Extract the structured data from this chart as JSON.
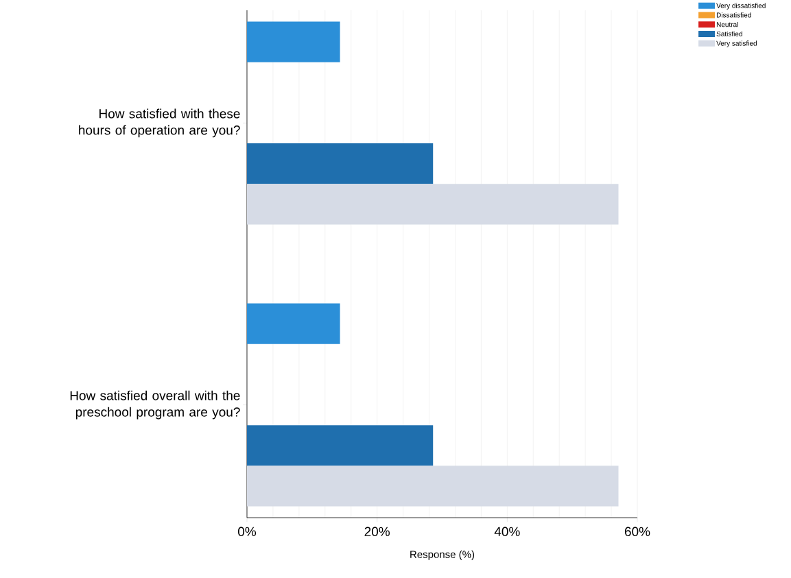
{
  "chart_data": {
    "type": "bar",
    "orientation": "horizontal",
    "xlabel": "Response (%)",
    "categories": [
      "How satisfied with these hours of operation are you?",
      "How satisfied overall with the preschool program are you?"
    ],
    "series": [
      {
        "name": "Very dissatisfied",
        "color": "#2b8fd8",
        "values": [
          14.3,
          14.3
        ]
      },
      {
        "name": "Dissatisfied",
        "color": "#f4a030",
        "values": [
          0,
          0
        ]
      },
      {
        "name": "Neutral",
        "color": "#d8201e",
        "values": [
          0,
          0
        ]
      },
      {
        "name": "Satisfied",
        "color": "#1f6fae",
        "values": [
          28.6,
          28.6
        ]
      },
      {
        "name": "Very satisfied",
        "color": "#d6dbe6",
        "values": [
          57.1,
          57.1
        ]
      }
    ],
    "xlim": [
      0,
      60
    ],
    "xticks": [
      {
        "value": 0,
        "label": "0%"
      },
      {
        "value": 4,
        "label": null
      },
      {
        "value": 8,
        "label": null
      },
      {
        "value": 12,
        "label": null
      },
      {
        "value": 16,
        "label": null
      },
      {
        "value": 20,
        "label": "20%"
      },
      {
        "value": 24,
        "label": null
      },
      {
        "value": 28,
        "label": null
      },
      {
        "value": 32,
        "label": null
      },
      {
        "value": 36,
        "label": null
      },
      {
        "value": 40,
        "label": "40%"
      },
      {
        "value": 44,
        "label": null
      },
      {
        "value": 48,
        "label": null
      },
      {
        "value": 52,
        "label": null
      },
      {
        "value": 56,
        "label": null
      },
      {
        "value": 60,
        "label": "60%"
      }
    ],
    "grid": "x",
    "legend": "top right"
  }
}
